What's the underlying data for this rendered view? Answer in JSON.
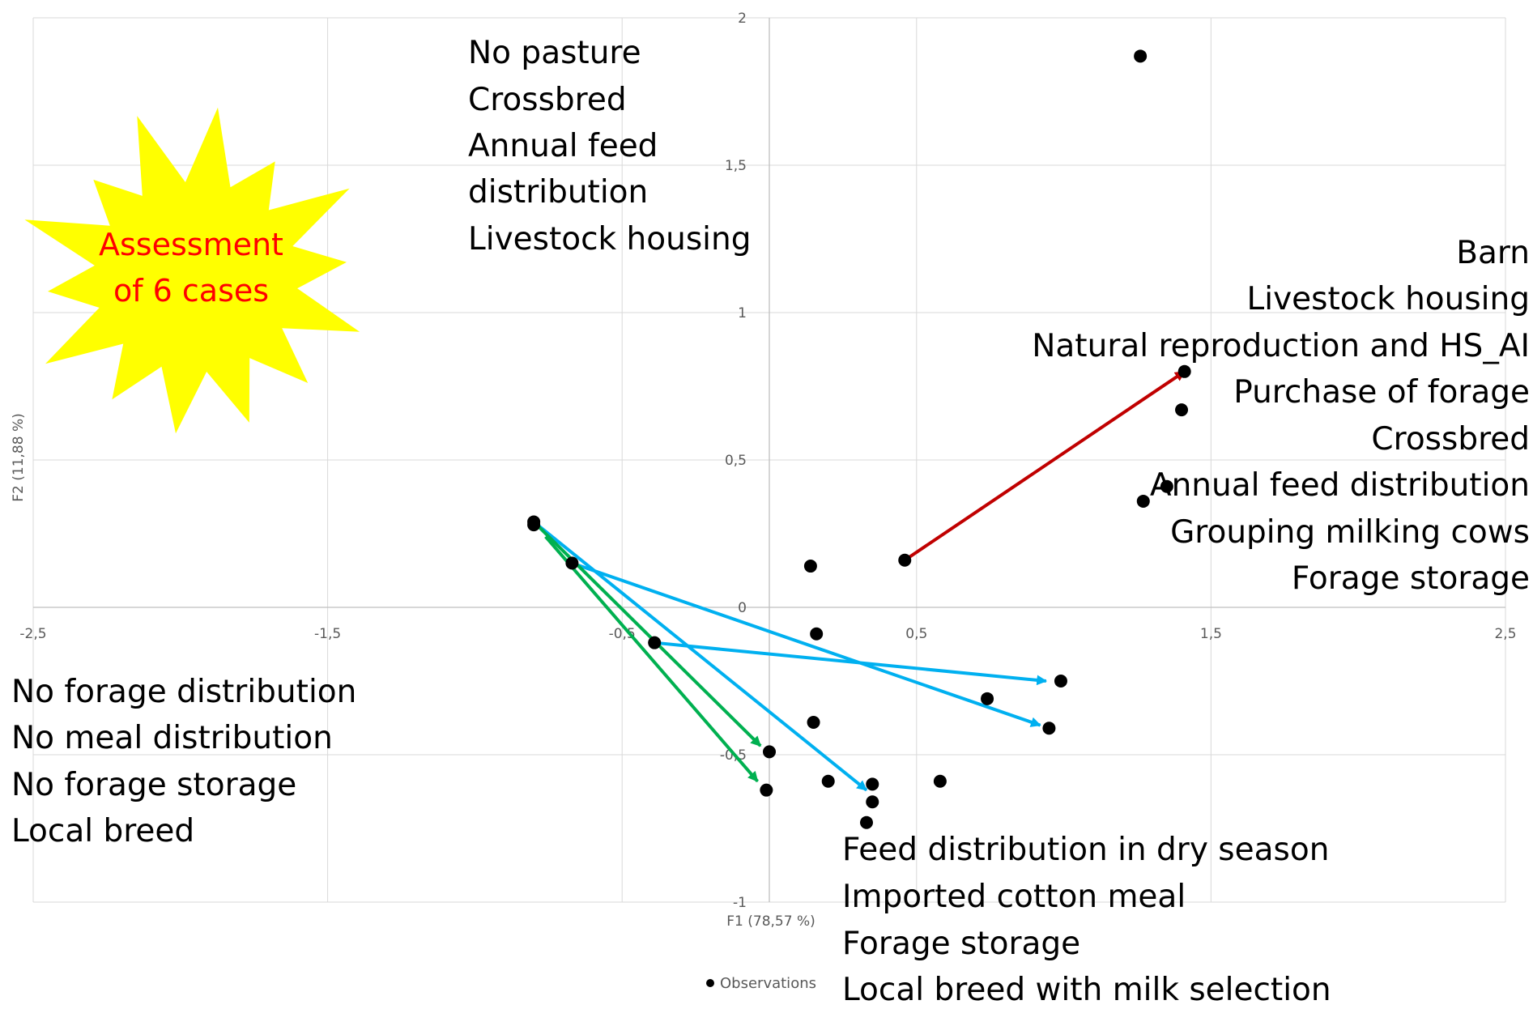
{
  "chart_data": {
    "type": "scatter",
    "xlabel": "F1 (78,57 %)",
    "ylabel": "F2 (11,88 %)",
    "xlim": [
      -2.5,
      2.5
    ],
    "ylim": [
      -1,
      2
    ],
    "x_ticks": [
      "-2,5",
      "-1,5",
      "-0,5",
      "0,5",
      "1,5",
      "2,5"
    ],
    "y_ticks": [
      "-1",
      "-0,5",
      "0",
      "0,5",
      "1",
      "1,5",
      "2"
    ],
    "grid": true,
    "legend": {
      "position": "bottom",
      "entries": [
        "Observations"
      ]
    },
    "series": [
      {
        "name": "Observations",
        "marker": "circle",
        "color": "#000000",
        "points": [
          {
            "x": 1.26,
            "y": 1.87
          },
          {
            "x": 1.41,
            "y": 0.8
          },
          {
            "x": 1.4,
            "y": 0.67
          },
          {
            "x": 1.35,
            "y": 0.41
          },
          {
            "x": 1.27,
            "y": 0.36
          },
          {
            "x": 0.46,
            "y": 0.16
          },
          {
            "x": 0.14,
            "y": 0.14
          },
          {
            "x": -0.8,
            "y": 0.29
          },
          {
            "x": -0.8,
            "y": 0.28
          },
          {
            "x": -0.67,
            "y": 0.15
          },
          {
            "x": -0.39,
            "y": -0.12
          },
          {
            "x": 0.16,
            "y": -0.09
          },
          {
            "x": 0.74,
            "y": -0.31
          },
          {
            "x": 0.99,
            "y": -0.25
          },
          {
            "x": 0.95,
            "y": -0.41
          },
          {
            "x": 0.15,
            "y": -0.39
          },
          {
            "x": 0.0,
            "y": -0.49
          },
          {
            "x": -0.01,
            "y": -0.62
          },
          {
            "x": 0.2,
            "y": -0.59
          },
          {
            "x": 0.35,
            "y": -0.6
          },
          {
            "x": 0.58,
            "y": -0.59
          },
          {
            "x": 0.35,
            "y": -0.66
          },
          {
            "x": 0.33,
            "y": -0.73
          }
        ]
      }
    ],
    "arrows": [
      {
        "color": "#c00000",
        "from": [
          0.46,
          0.16
        ],
        "to": [
          1.41,
          0.8
        ]
      },
      {
        "color": "#00b0f0",
        "from": [
          -0.8,
          0.29
        ],
        "to": [
          0.33,
          -0.62
        ]
      },
      {
        "color": "#00b0f0",
        "from": [
          -0.67,
          0.15
        ],
        "to": [
          0.92,
          -0.4
        ]
      },
      {
        "color": "#00b0f0",
        "from": [
          -0.39,
          -0.12
        ],
        "to": [
          0.94,
          -0.25
        ]
      },
      {
        "color": "#00b050",
        "from": [
          -0.8,
          0.29
        ],
        "to": [
          -0.03,
          -0.47
        ]
      },
      {
        "color": "#00b050",
        "from": [
          -0.76,
          0.24
        ],
        "to": [
          -0.04,
          -0.59
        ]
      }
    ]
  },
  "annotations": {
    "top_center": [
      "No pasture",
      "Crossbred",
      "Annual feed",
      "distribution",
      "Livestock housing"
    ],
    "right": [
      "Barn",
      "Livestock housing",
      "Natural reproduction and HS_AI",
      "Purchase of forage",
      "Crossbred",
      "Annual feed distribution",
      "Grouping milking cows",
      "Forage storage"
    ],
    "left": [
      "No forage distribution",
      "No meal distribution",
      "No forage storage",
      "Local breed"
    ],
    "bottom": [
      "Feed distribution in dry season",
      "Imported cotton meal",
      "Forage storage",
      "Local breed with milk selection"
    ]
  },
  "starburst": {
    "lines": [
      "Assessment",
      "of 6 cases"
    ],
    "fill_color": "#ffff00",
    "text_color": "#ff0000"
  },
  "colors": {
    "grid": "#d9d9d9",
    "marker": "#000000",
    "arrow_red": "#c00000",
    "arrow_blue": "#00b0f0",
    "arrow_green": "#00b050"
  }
}
